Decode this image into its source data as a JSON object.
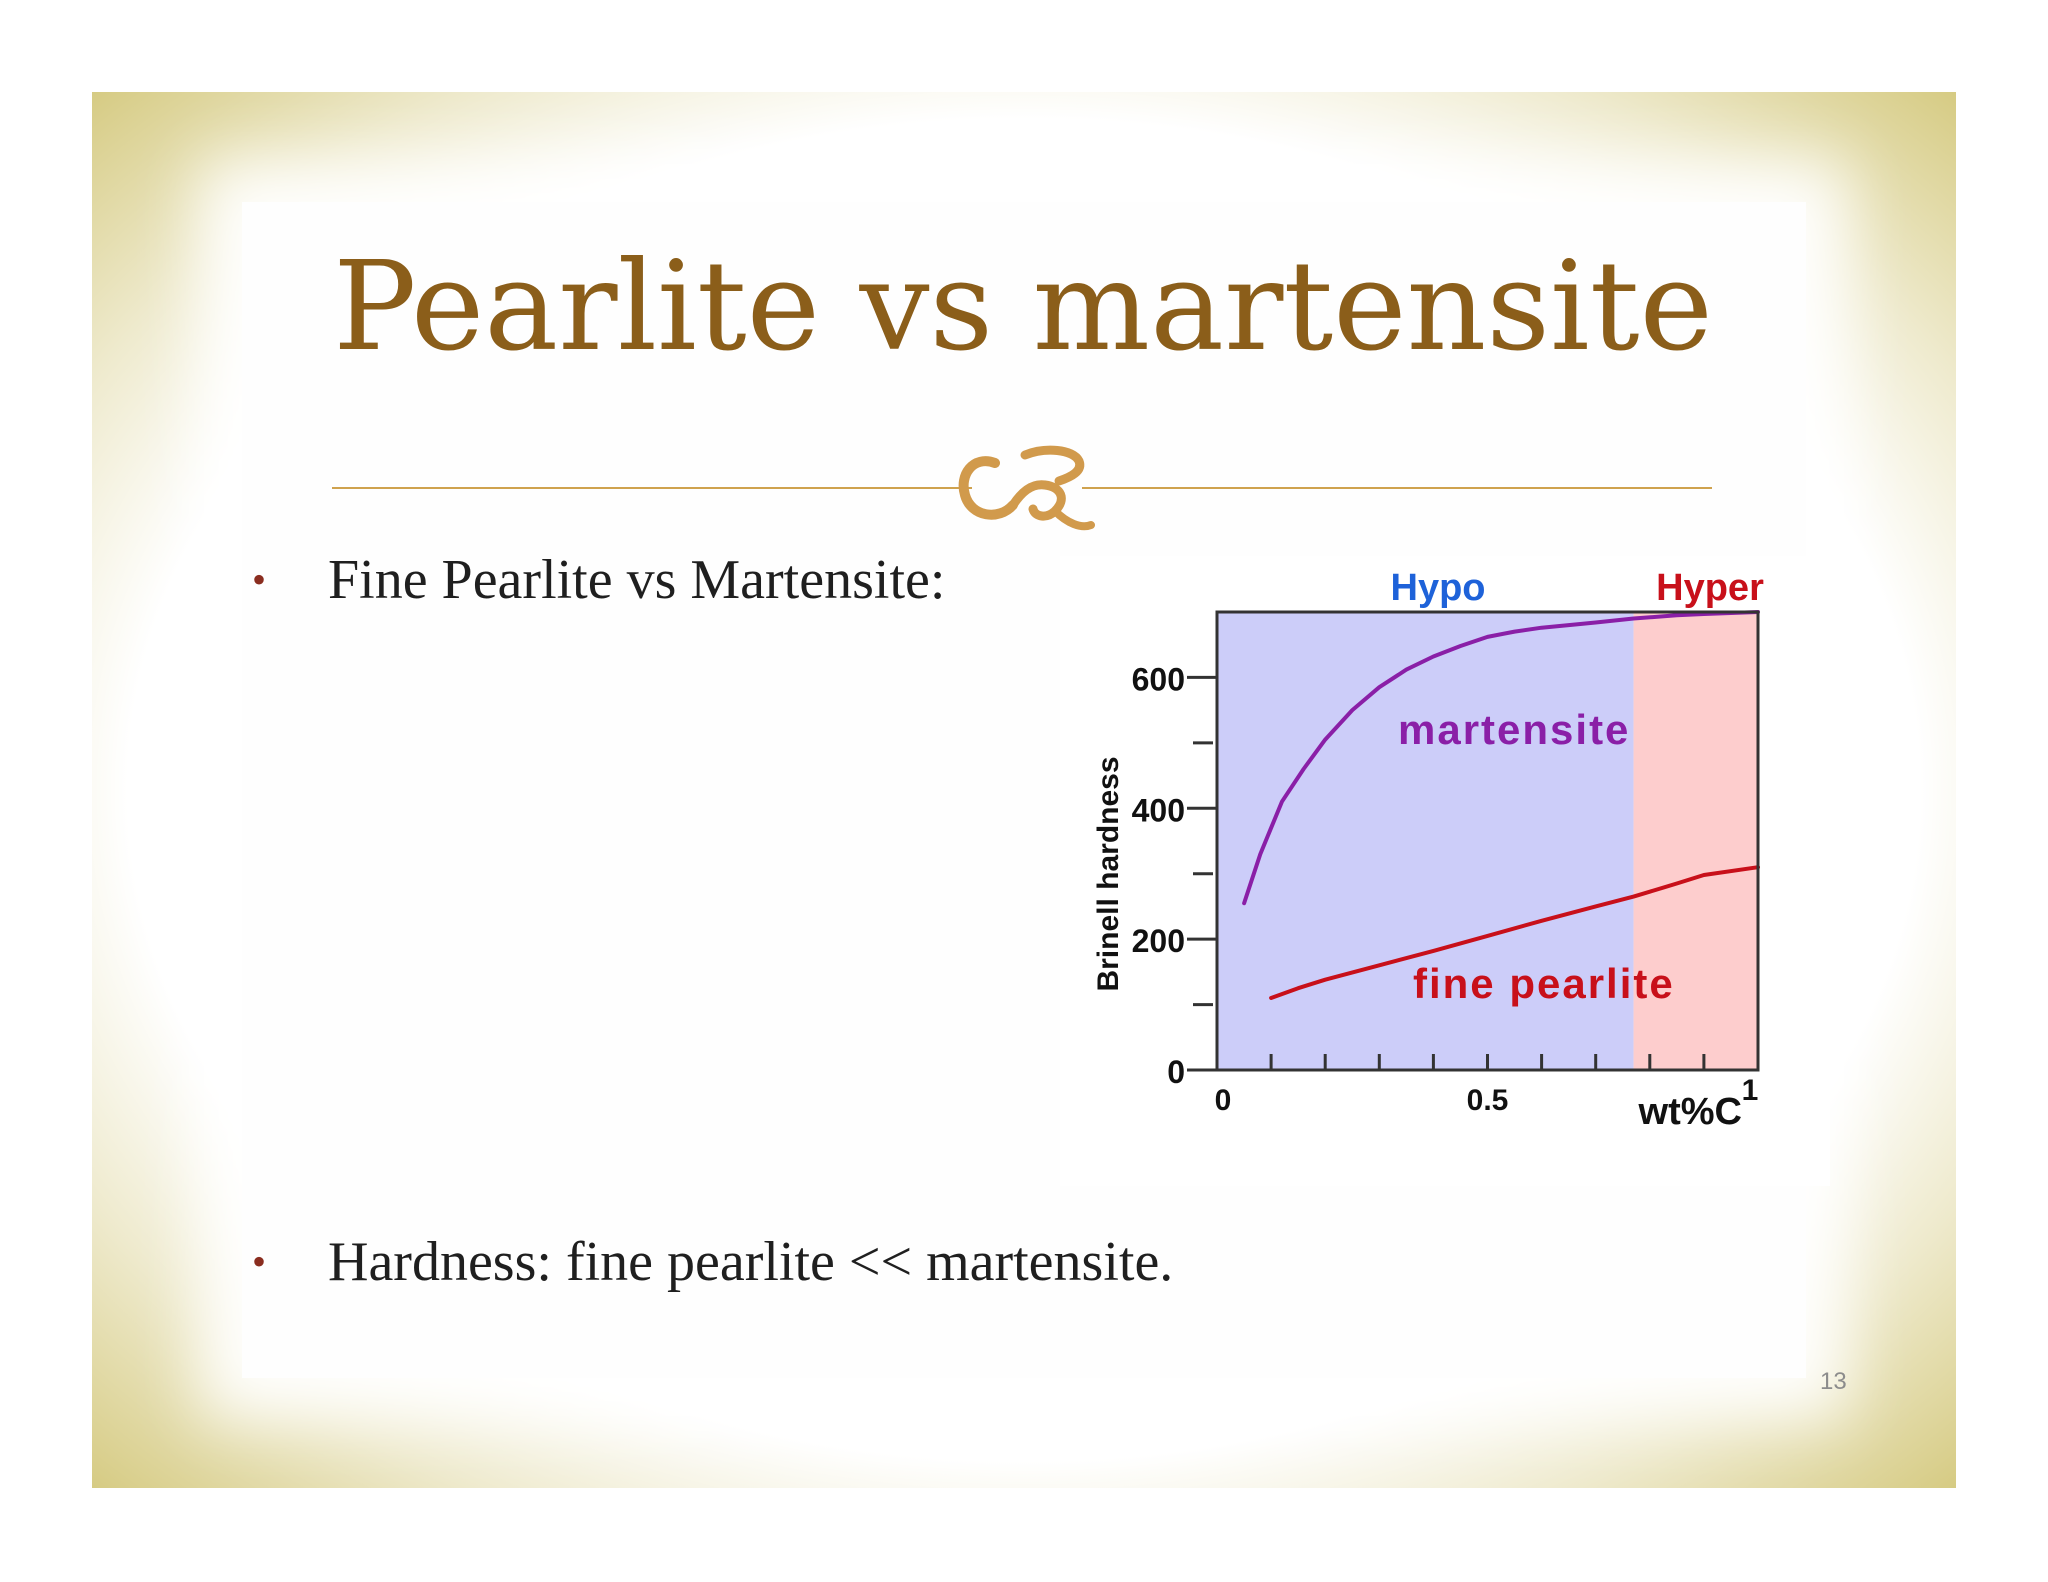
{
  "slide": {
    "title": "Pearlite vs martensite",
    "bullets": [
      "Fine Pearlite vs Martensite:",
      "Hardness: fine pearlite << martensite."
    ],
    "bullet_symbol": "•",
    "page_number": "13"
  },
  "colors": {
    "title": "#8b5e1a",
    "frame": "#d6cb83",
    "rule": "#cfa24e",
    "hypo_region": "#cccdf9",
    "hyper_region": "#fdcdcd",
    "hypo_label": "#1e62d9",
    "hyper_label": "#c8101a",
    "martensite": "#8a1fa7",
    "fine_pearlite": "#c8101a"
  },
  "chart_data": {
    "type": "line",
    "ylabel": "Brinell hardness",
    "xlabel": "wt%C",
    "xlim": [
      0,
      1
    ],
    "ylim": [
      0,
      700
    ],
    "x_ticks": [
      "0",
      "0.5",
      "1"
    ],
    "y_ticks": [
      "0",
      "200",
      "400",
      "600"
    ],
    "regions": [
      {
        "name": "Hypo",
        "x_range": [
          0,
          0.77
        ]
      },
      {
        "name": "Hyper",
        "x_range": [
          0.77,
          1
        ]
      }
    ],
    "series": [
      {
        "name": "martensite",
        "x": [
          0.05,
          0.08,
          0.12,
          0.16,
          0.2,
          0.25,
          0.3,
          0.35,
          0.4,
          0.45,
          0.5,
          0.55,
          0.6,
          0.65,
          0.7,
          0.77,
          0.85,
          0.9,
          1.0
        ],
        "y": [
          255,
          330,
          410,
          460,
          505,
          550,
          585,
          612,
          632,
          648,
          662,
          670,
          676,
          680,
          684,
          690,
          695,
          697,
          700
        ]
      },
      {
        "name": "fine pearlite",
        "x": [
          0.1,
          0.15,
          0.2,
          0.3,
          0.4,
          0.5,
          0.6,
          0.7,
          0.77,
          0.85,
          0.9,
          1.0
        ],
        "y": [
          110,
          125,
          138,
          160,
          182,
          205,
          228,
          250,
          265,
          285,
          298,
          310
        ]
      }
    ]
  }
}
